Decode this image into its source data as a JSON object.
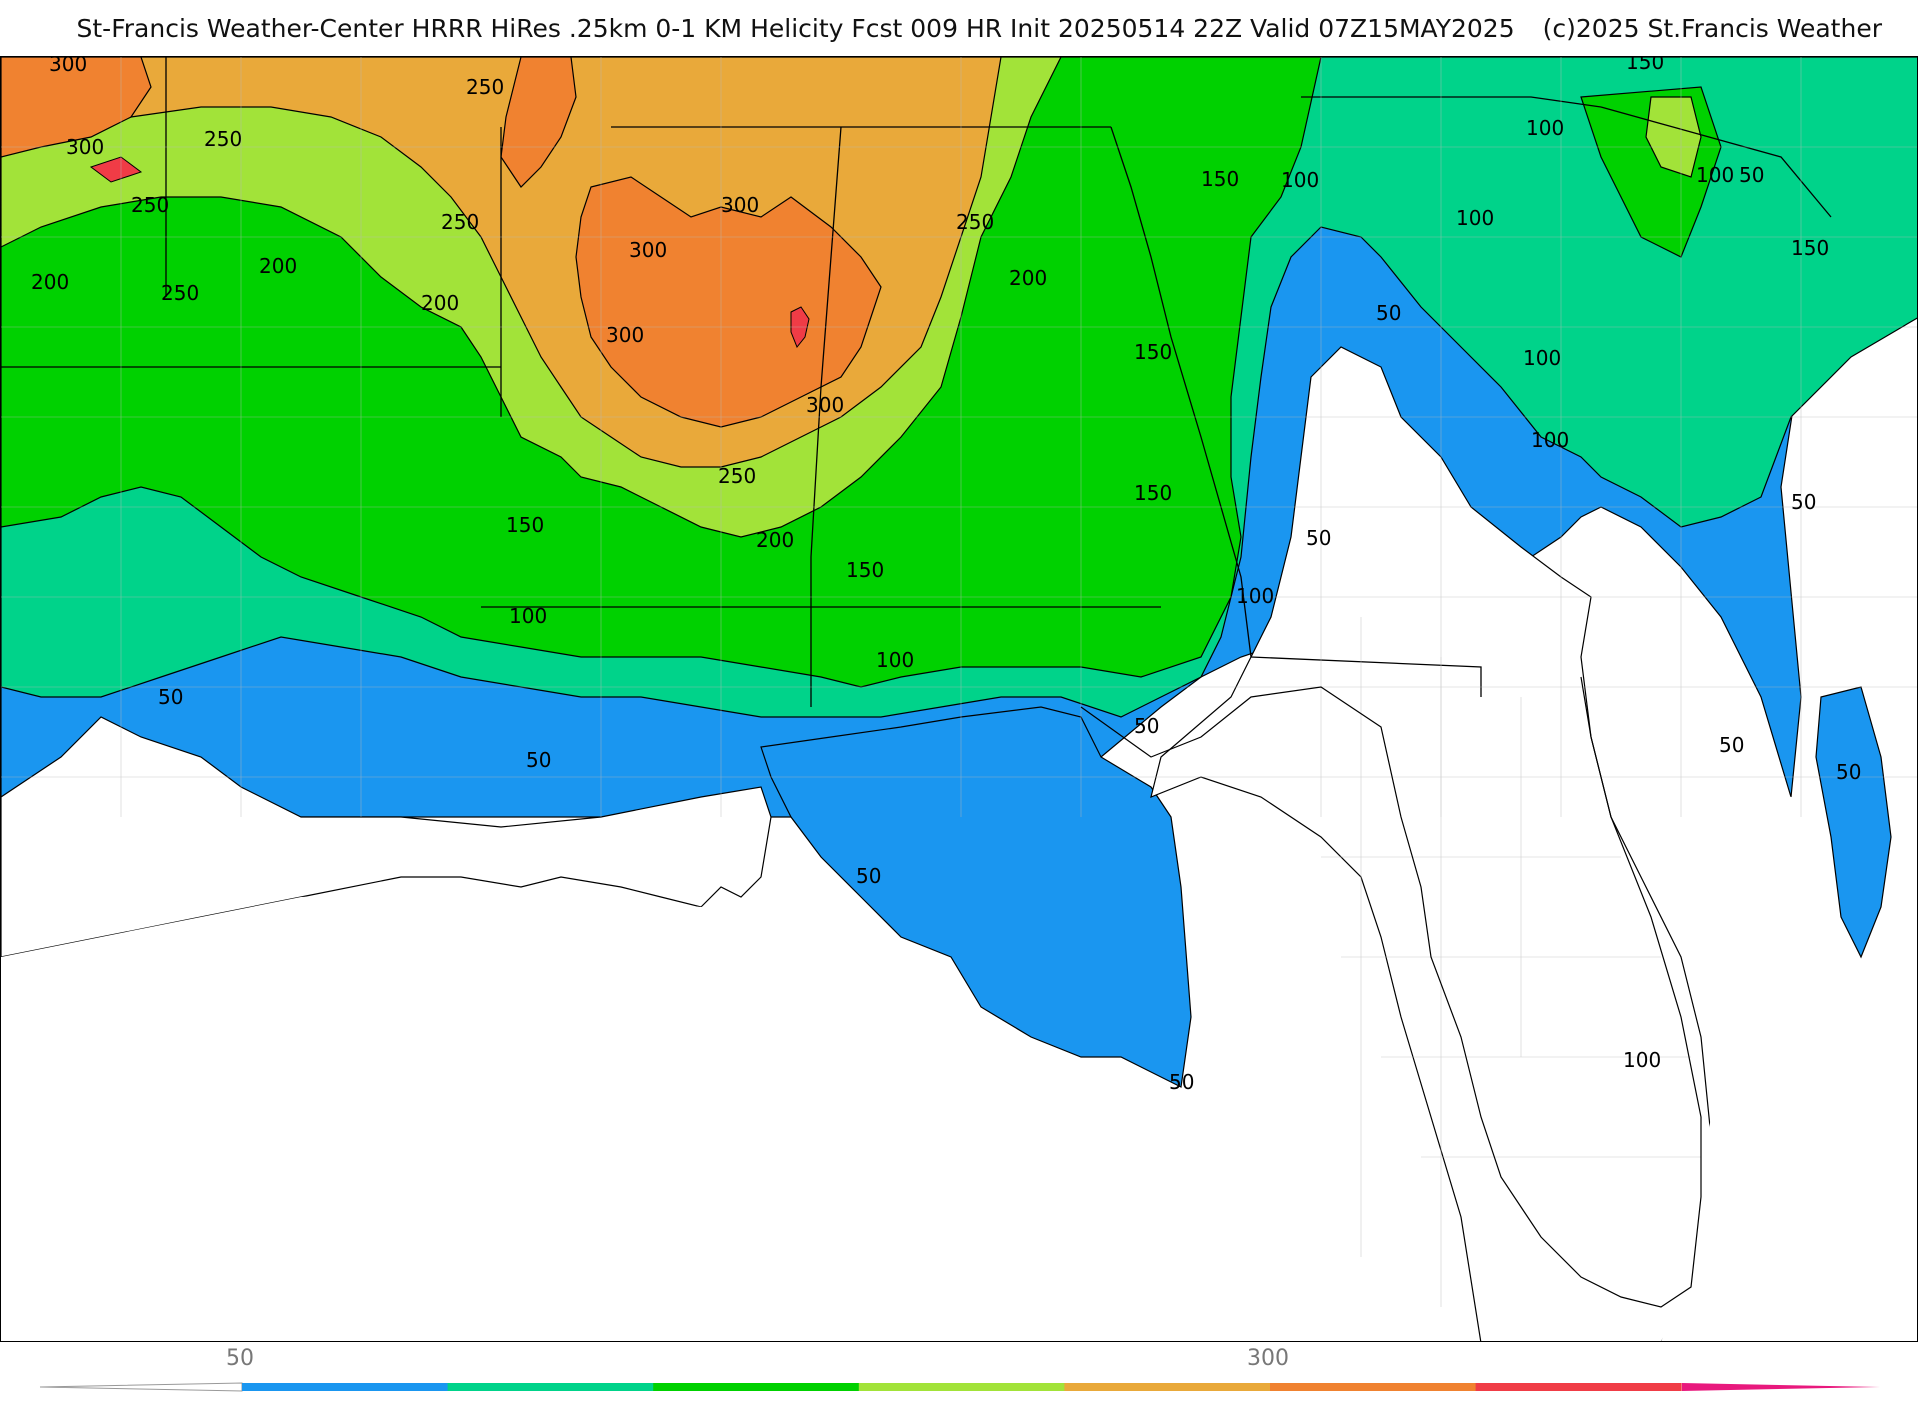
{
  "title": {
    "main": "St-Francis Weather-Center HRRR HiRes .25km 0-1 KM Helicity Fcst 009 HR Init 20250514 22Z  Valid 07Z15MAY2025",
    "copyright": "(c)2025 St.Francis Weather"
  },
  "map": {
    "field": "0-1 KM Helicity",
    "region": "Southeastern United States and Gulf of Mexico",
    "contour_levels": [
      50,
      100,
      150,
      200,
      250,
      300
    ],
    "contour_labels": [
      "300",
      "300",
      "250",
      "250",
      "250",
      "250",
      "250",
      "200",
      "200",
      "200",
      "200",
      "250",
      "300",
      "300",
      "300",
      "300",
      "250",
      "200",
      "150",
      "150",
      "150",
      "100",
      "100",
      "150",
      "150",
      "150",
      "100",
      "100",
      "100",
      "100",
      "100",
      "50",
      "50",
      "50",
      "50",
      "50",
      "50",
      "50",
      "50",
      "50",
      "50",
      "100",
      "100",
      "150",
      "100",
      "50"
    ]
  },
  "colorbar": {
    "tick_labels": [
      "50",
      "300"
    ],
    "colors": [
      "#1a96f0",
      "#00d38a",
      "#00d100",
      "#a2e339",
      "#e9a93a",
      "#f08230",
      "#f03c46",
      "#e8197d"
    ]
  }
}
